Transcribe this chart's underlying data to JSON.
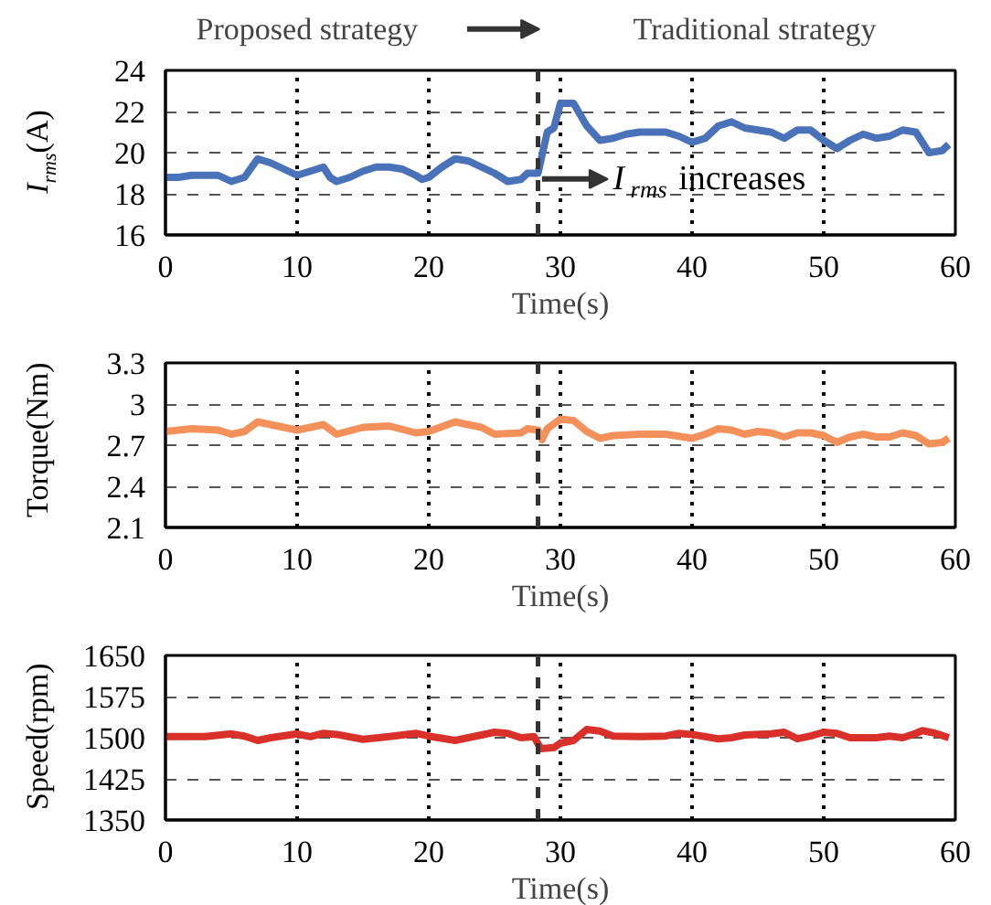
{
  "chart_data": [
    {
      "type": "line",
      "xlabel": "Time(s)",
      "ylabel": "I$_{rms}$(A)",
      "xlim": [
        0,
        60
      ],
      "ylim": [
        16,
        24
      ],
      "xticks": [
        0,
        10,
        20,
        30,
        40,
        50,
        60
      ],
      "yticks": [
        16,
        18,
        20,
        22,
        24
      ],
      "grid": true,
      "line_style": "solid",
      "annotations": [
        "Proposed strategy",
        "Traditional strategy",
        "I$_{rms}$ increases"
      ],
      "ref_lines": [
        {
          "axis": "x",
          "value": 28.3,
          "color": "#333333",
          "line_style": "dashed"
        }
      ],
      "series": [
        {
          "color": "#4a72b8",
          "x": [
            0,
            1,
            2,
            3,
            4,
            5,
            6,
            7,
            8,
            9,
            10,
            11,
            12,
            12.5,
            13,
            14,
            15,
            16,
            17,
            18,
            19,
            19.5,
            20,
            21,
            22,
            23,
            24,
            25,
            26,
            27,
            27.5,
            28.3,
            29,
            29.5,
            30,
            31,
            32,
            33,
            34,
            35,
            36,
            38,
            39,
            40,
            41,
            42,
            43,
            44,
            45,
            46,
            47,
            48,
            49,
            50,
            51,
            52,
            53,
            54,
            55,
            56,
            57,
            58,
            59,
            59.5
          ],
          "values": [
            18.8,
            18.8,
            18.9,
            18.9,
            18.9,
            18.6,
            18.8,
            19.7,
            19.5,
            19.2,
            18.9,
            19.1,
            19.3,
            18.8,
            18.6,
            18.8,
            19.1,
            19.3,
            19.3,
            19.2,
            18.9,
            18.7,
            18.8,
            19.3,
            19.7,
            19.6,
            19.3,
            19.0,
            18.6,
            18.7,
            19.0,
            19.0,
            21.0,
            21.2,
            22.4,
            22.4,
            21.3,
            20.6,
            20.7,
            20.9,
            21.0,
            21.0,
            20.8,
            20.5,
            20.7,
            21.3,
            21.5,
            21.2,
            21.1,
            21.0,
            20.7,
            21.1,
            21.1,
            20.6,
            20.2,
            20.6,
            20.9,
            20.7,
            20.8,
            21.1,
            21.0,
            20.0,
            20.1,
            20.4
          ]
        }
      ]
    },
    {
      "type": "line",
      "xlabel": "Time(s)",
      "ylabel": "Torque(Nm)",
      "xlim": [
        0,
        60
      ],
      "ylim": [
        2.1,
        3.3
      ],
      "xticks": [
        0,
        10,
        20,
        30,
        40,
        50,
        60
      ],
      "yticks": [
        2.1,
        2.4,
        2.7,
        3,
        3.3
      ],
      "grid": true,
      "line_style": "solid",
      "ref_lines": [
        {
          "axis": "x",
          "value": 28.3,
          "color": "#333333",
          "line_style": "dashed"
        }
      ],
      "series": [
        {
          "color": "#f4915a",
          "x": [
            0,
            2,
            4,
            5,
            6,
            7,
            8,
            10,
            12,
            13,
            15,
            17,
            19,
            20,
            22,
            24,
            25,
            27,
            27.5,
            28.3,
            28.6,
            29,
            30,
            31,
            32,
            33,
            34,
            36,
            38,
            40,
            41,
            42,
            43,
            44,
            45,
            46,
            47,
            48,
            49,
            50,
            51,
            52,
            53,
            54,
            55,
            56,
            57,
            58,
            59,
            59.5
          ],
          "values": [
            2.8,
            2.82,
            2.81,
            2.78,
            2.8,
            2.87,
            2.85,
            2.81,
            2.85,
            2.78,
            2.83,
            2.84,
            2.79,
            2.8,
            2.87,
            2.83,
            2.78,
            2.79,
            2.82,
            2.81,
            2.74,
            2.82,
            2.89,
            2.88,
            2.8,
            2.75,
            2.77,
            2.78,
            2.78,
            2.75,
            2.78,
            2.82,
            2.81,
            2.78,
            2.8,
            2.79,
            2.76,
            2.79,
            2.79,
            2.77,
            2.72,
            2.76,
            2.78,
            2.76,
            2.76,
            2.79,
            2.77,
            2.71,
            2.72,
            2.75
          ]
        }
      ]
    },
    {
      "type": "line",
      "xlabel": "Time(s)",
      "ylabel": "Speed(rpm)",
      "xlim": [
        0,
        60
      ],
      "ylim": [
        1350,
        1650
      ],
      "xticks": [
        0,
        10,
        20,
        30,
        40,
        50,
        60
      ],
      "yticks": [
        1350,
        1425,
        1500,
        1575,
        1650
      ],
      "grid": true,
      "line_style": "solid",
      "ref_lines": [
        {
          "axis": "x",
          "value": 28.3,
          "color": "#333333",
          "line_style": "dashed"
        }
      ],
      "series": [
        {
          "color": "#d9302a",
          "x": [
            0,
            3,
            5,
            6,
            7,
            8,
            10,
            11,
            12,
            13,
            15,
            17,
            19,
            20,
            22,
            24,
            25,
            26,
            27,
            28,
            28.5,
            29.5,
            30,
            31,
            32,
            33,
            34,
            36,
            38,
            39,
            40,
            42,
            43,
            44,
            46,
            47,
            48,
            49,
            50,
            51,
            52,
            54,
            55,
            56,
            57,
            57.5,
            58.5,
            59.5
          ],
          "values": [
            1502,
            1502,
            1507,
            1503,
            1495,
            1500,
            1507,
            1502,
            1508,
            1506,
            1497,
            1502,
            1508,
            1503,
            1495,
            1505,
            1510,
            1508,
            1500,
            1502,
            1480,
            1482,
            1490,
            1495,
            1515,
            1512,
            1503,
            1502,
            1503,
            1508,
            1506,
            1498,
            1500,
            1505,
            1507,
            1510,
            1498,
            1503,
            1510,
            1508,
            1500,
            1500,
            1503,
            1500,
            1508,
            1513,
            1508,
            1500
          ]
        }
      ]
    }
  ]
}
